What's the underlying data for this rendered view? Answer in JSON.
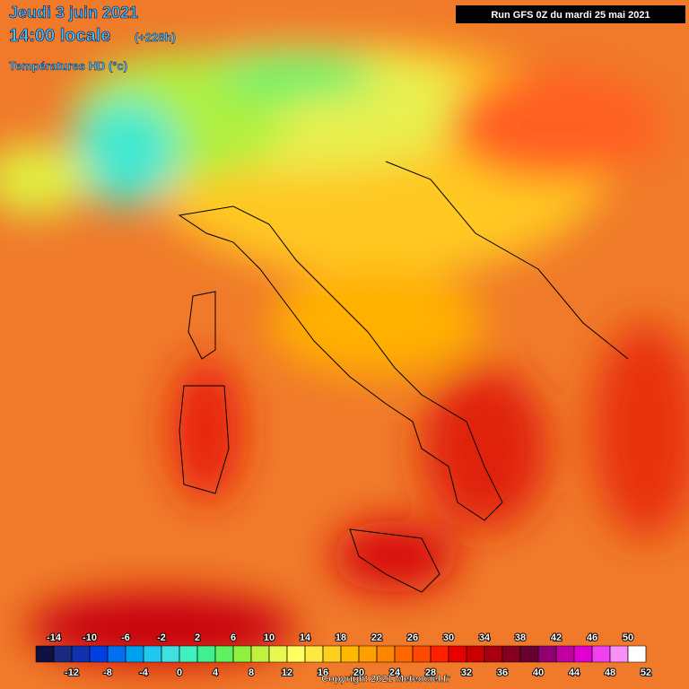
{
  "header": {
    "date": "Jeudi 3 juin 2021",
    "time": "14:00 locale",
    "lead": "(+228h)",
    "variable": "Températures HD (°c)",
    "run": "Run GFS 0Z du mardi 25 mai 2021"
  },
  "scale": {
    "labels": [
      -14,
      -12,
      -10,
      -8,
      -6,
      -4,
      -2,
      0,
      2,
      4,
      6,
      8,
      10,
      12,
      14,
      16,
      18,
      20,
      22,
      24,
      26,
      28,
      30,
      32,
      34,
      36,
      38,
      40,
      42,
      44,
      46,
      48,
      50,
      52
    ],
    "colors": [
      "#101040",
      "#1a2a80",
      "#1030b0",
      "#0040e0",
      "#0070f0",
      "#00a0f0",
      "#20c8f0",
      "#40e0e0",
      "#40f0c0",
      "#40f090",
      "#60f060",
      "#90f040",
      "#c0f040",
      "#e8f850",
      "#ffff60",
      "#ffe840",
      "#ffd020",
      "#ffb800",
      "#ffa000",
      "#ff8400",
      "#ff6800",
      "#ff4800",
      "#ff2000",
      "#e80000",
      "#c80000",
      "#a80010",
      "#880020",
      "#680030",
      "#900070",
      "#c000a0",
      "#e000d0",
      "#f040f0",
      "#f890f8",
      "#ffffff"
    ]
  },
  "footer": {
    "copyright": "Copyright 2021 Meteociel.fr"
  }
}
